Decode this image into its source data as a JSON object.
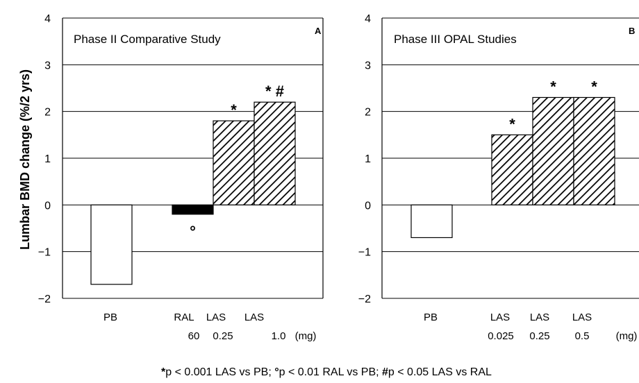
{
  "chart_data": {
    "type": "bar",
    "ylabel": "Lumbar BMD change (%/2 yrs)",
    "ylim": [
      -2,
      4
    ],
    "yticks": [
      "4",
      "3",
      "2",
      "1",
      "0",
      "−1",
      "−2"
    ],
    "grid": true,
    "footnote": {
      "s1": "*",
      "t1": "p < 0.001 LAS vs PB; ",
      "s2": "°",
      "t2": "p < 0.01 RAL vs PB;  ",
      "s3": "#",
      "t3": "p < 0.05 LAS vs RAL"
    },
    "panels": [
      {
        "title": "Phase II Comparative Study",
        "letter": "A",
        "unit_label": "(mg)",
        "bars": [
          {
            "label": "PB",
            "dose": "",
            "value": -1.7,
            "style": "open",
            "mark": ""
          },
          {
            "label": "RAL",
            "dose": "60",
            "value": -0.2,
            "style": "solid",
            "mark": "°"
          },
          {
            "label": "LAS",
            "dose": "0.25",
            "value": 1.8,
            "style": "hatch",
            "mark": "*"
          },
          {
            "label": "LAS",
            "dose": "1.0",
            "value": 2.2,
            "style": "hatch",
            "mark": "* #"
          }
        ]
      },
      {
        "title": "Phase III OPAL Studies",
        "letter": "B",
        "unit_label": "(mg)",
        "bars": [
          {
            "label": "PB",
            "dose": "",
            "value": -0.7,
            "style": "open",
            "mark": ""
          },
          {
            "label": "LAS",
            "dose": "0.025",
            "value": 1.5,
            "style": "hatch",
            "mark": "*"
          },
          {
            "label": "LAS",
            "dose": "0.25",
            "value": 2.3,
            "style": "hatch",
            "mark": "*"
          },
          {
            "label": "LAS",
            "dose": "0.5",
            "value": 2.3,
            "style": "hatch",
            "mark": "*"
          }
        ]
      }
    ]
  }
}
